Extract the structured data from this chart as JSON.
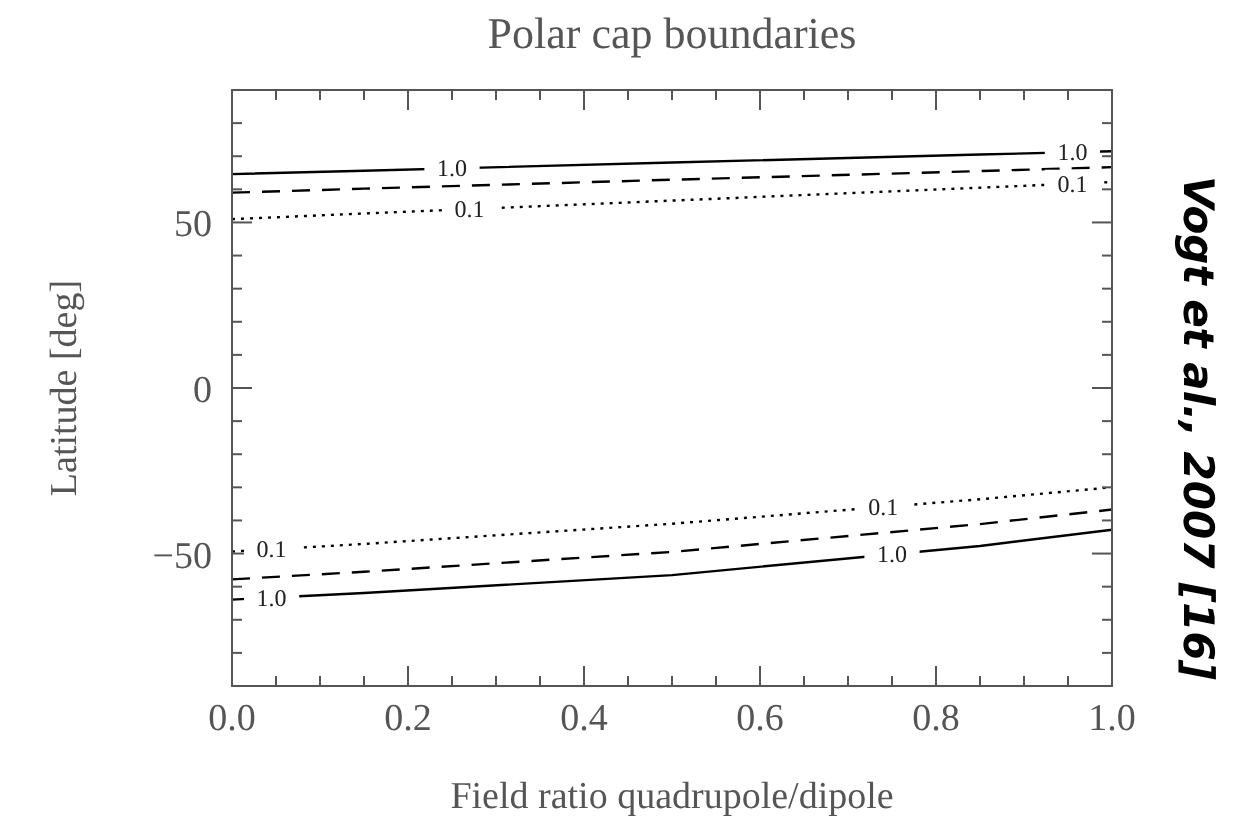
{
  "chart_data": {
    "type": "line",
    "title": "Polar cap boundaries",
    "xlabel": "Field ratio quadrupole/dipole",
    "ylabel": "Latitude [deg]",
    "x": [
      0,
      0.15,
      0.5,
      0.85,
      1
    ],
    "series": [
      {
        "color": "#000000",
        "line_style": "solid",
        "values": [
          64.6,
          65.6,
          68.1,
          70.5,
          71.5
        ]
      },
      {
        "color": "#000000",
        "line_style": "dashed",
        "values": [
          59,
          60.2,
          62.9,
          65.5,
          66.7
        ]
      },
      {
        "color": "#000000",
        "line_style": "dotted",
        "values": [
          51,
          52.7,
          56.6,
          60.5,
          62.2
        ]
      },
      {
        "color": "#000000",
        "line_style": "dotted",
        "values": [
          -49.4,
          -47.1,
          -41,
          -33.6,
          -30
        ]
      },
      {
        "color": "#000000",
        "line_style": "dashed",
        "values": [
          -57.8,
          -55.5,
          -49.5,
          -41.1,
          -36.7
        ]
      },
      {
        "color": "#000000",
        "line_style": "solid",
        "values": [
          -63.9,
          -61.9,
          -56.5,
          -47.7,
          -42.8
        ]
      }
    ],
    "xlim": [
      0,
      1
    ],
    "ylim": [
      -90,
      90
    ],
    "xticks": [
      {
        "value": 0,
        "label": "0.0"
      },
      {
        "value": 0.2,
        "label": "0.2"
      },
      {
        "value": 0.4,
        "label": "0.4"
      },
      {
        "value": 0.6,
        "label": "0.6"
      },
      {
        "value": 0.8,
        "label": "0.8"
      },
      {
        "value": 1,
        "label": "1.0"
      }
    ],
    "yticks": [
      {
        "value": -80,
        "label": null
      },
      {
        "value": -70,
        "label": null
      },
      {
        "value": -60,
        "label": null
      },
      -50,
      {
        "value": -40,
        "label": null
      },
      {
        "value": -30,
        "label": null
      },
      {
        "value": -20,
        "label": null
      },
      {
        "value": -10,
        "label": null
      },
      0,
      {
        "value": 10,
        "label": null
      },
      {
        "value": 20,
        "label": null
      },
      {
        "value": 30,
        "label": null
      },
      {
        "value": 40,
        "label": null
      },
      50,
      {
        "value": 60,
        "label": null
      },
      {
        "value": 70,
        "label": null
      },
      {
        "value": 80,
        "label": null
      }
    ],
    "grid": false,
    "annotations": [
      {
        "text": "1.0",
        "x": 0.25,
        "y": 66.3
      },
      {
        "text": "1.0",
        "x": 0.955,
        "y": 71.2
      },
      {
        "text": "0.1",
        "x": 0.27,
        "y": 54
      },
      {
        "text": "0.1",
        "x": 0.955,
        "y": 61.7
      },
      {
        "text": "0.1",
        "x": 0.045,
        "y": -48.7
      },
      {
        "text": "0.1",
        "x": 0.74,
        "y": -35.9
      },
      {
        "text": "1.0",
        "x": 0.045,
        "y": -63.3
      },
      {
        "text": "1.0",
        "x": 0.75,
        "y": -50.2
      },
      "Vogt et al., 2007 [16]"
    ]
  }
}
